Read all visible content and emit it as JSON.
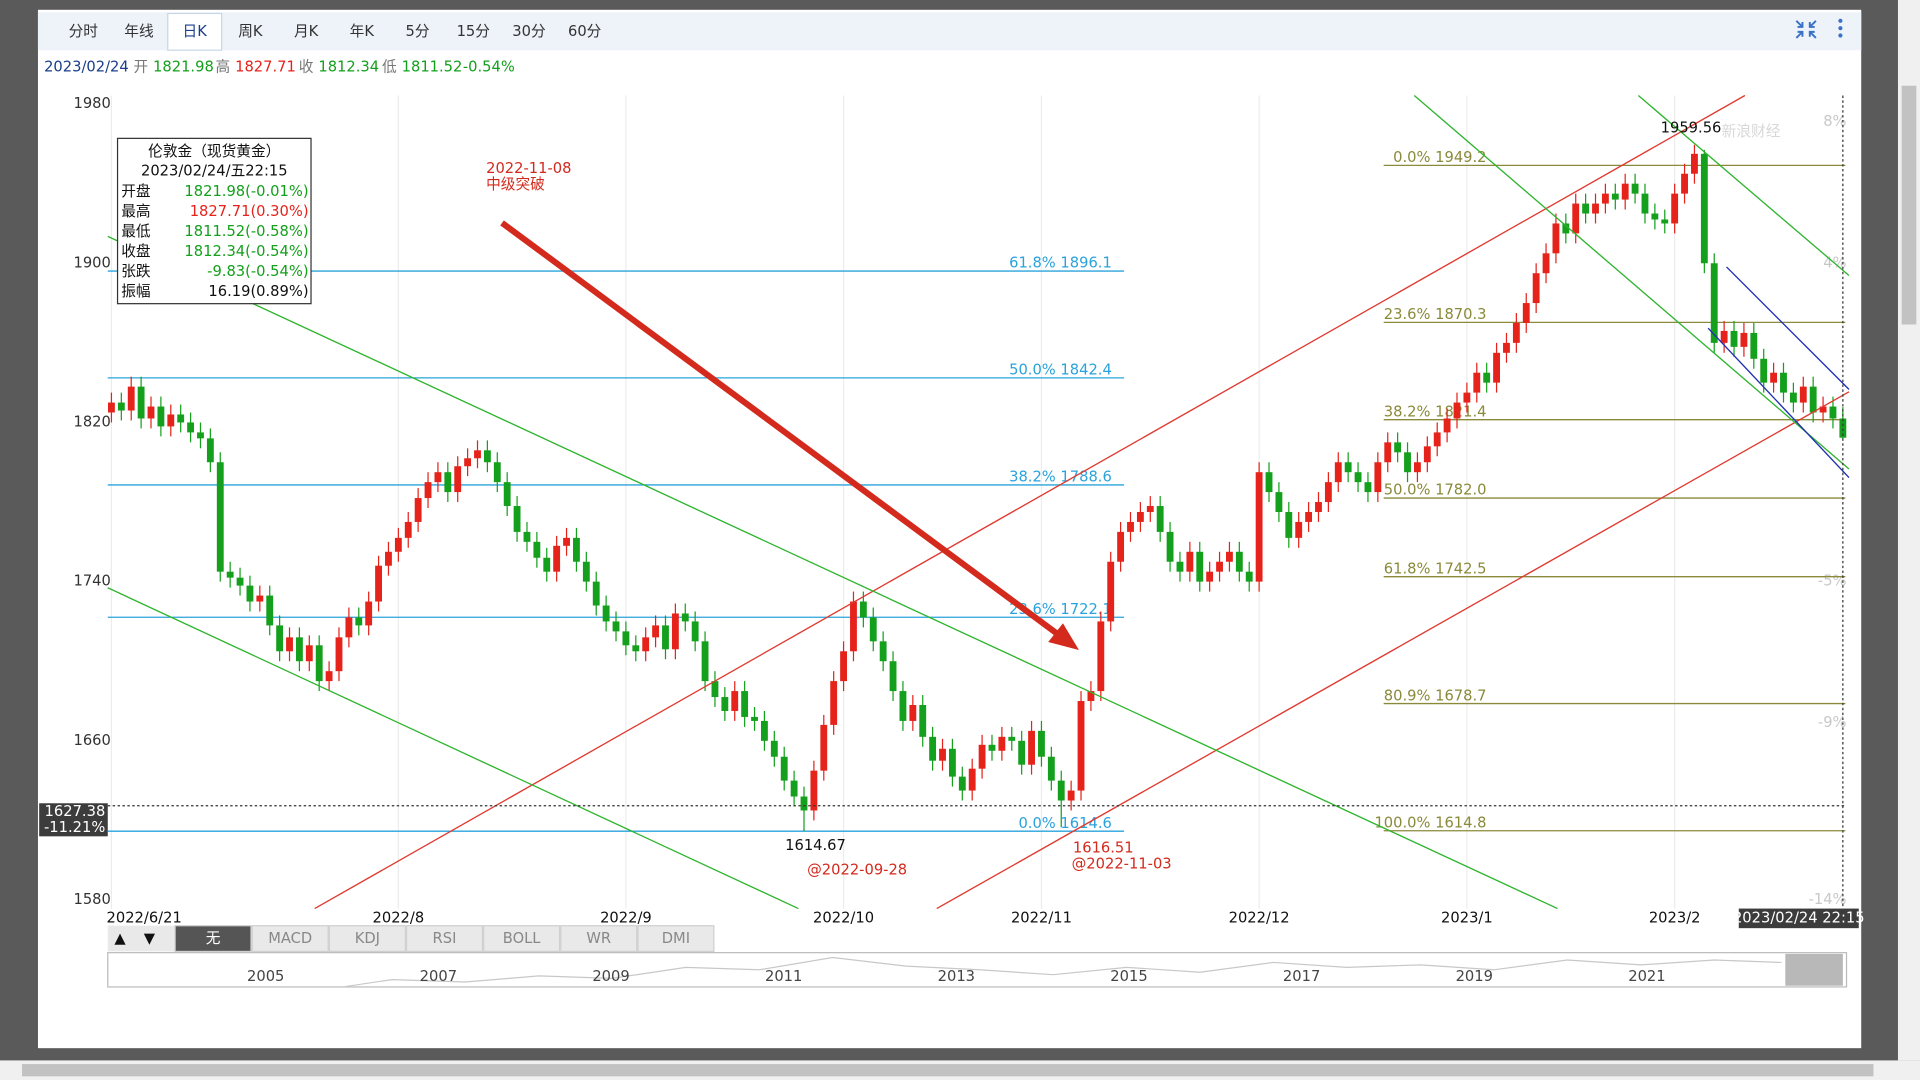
{
  "toolbar": {
    "period_tabs": [
      "分时",
      "年线",
      "日K",
      "周K",
      "月K",
      "年K",
      "5分",
      "15分",
      "30分",
      "60分"
    ],
    "active_period": "日K"
  },
  "quote_line": {
    "date": "2023/02/24",
    "open_label": "开",
    "open": "1821.98",
    "high_label": "高",
    "high": "1827.71",
    "close_label": "收",
    "close": "1812.34",
    "low_label": "低",
    "low": "1811.52",
    "change": "-0.54%"
  },
  "info_box": {
    "title": "伦敦金（现货黄金）",
    "datetime": "2023/02/24/五22:15",
    "rows": [
      [
        "开盘",
        "1821.98(-0.01%)"
      ],
      [
        "最高",
        "1827.71(0.30%)"
      ],
      [
        "最低",
        "1811.52(-0.58%)"
      ],
      [
        "收盘",
        "1812.34(-0.54%)"
      ],
      [
        "张跌",
        "-9.83(-0.54%)"
      ],
      [
        "振幅",
        "16.19(0.89%)"
      ]
    ]
  },
  "chart_data": {
    "type": "candlestick",
    "categories": [
      "2022/6/21",
      null,
      null,
      null,
      null,
      null,
      null,
      null,
      null,
      null,
      null,
      null,
      null,
      null,
      null,
      null,
      null,
      null,
      null,
      null,
      null,
      null,
      null,
      null,
      null,
      null,
      null,
      null,
      null,
      "2022/8",
      null,
      null,
      null,
      null,
      null,
      null,
      null,
      null,
      null,
      null,
      null,
      null,
      null,
      null,
      null,
      null,
      null,
      null,
      null,
      null,
      null,
      null,
      "2022/9",
      null,
      null,
      null,
      null,
      null,
      null,
      null,
      null,
      null,
      null,
      null,
      null,
      null,
      null,
      null,
      null,
      null,
      null,
      null,
      null,
      null,
      "2022/10",
      null,
      null,
      null,
      null,
      null,
      null,
      null,
      null,
      null,
      null,
      null,
      null,
      null,
      null,
      null,
      null,
      null,
      null,
      null,
      "2022/11",
      null,
      null,
      null,
      null,
      null,
      null,
      null,
      null,
      null,
      null,
      null,
      null,
      null,
      null,
      null,
      null,
      null,
      null,
      null,
      null,
      null,
      "2022/12",
      null,
      null,
      null,
      null,
      null,
      null,
      null,
      null,
      null,
      null,
      null,
      null,
      null,
      null,
      null,
      null,
      null,
      null,
      null,
      null,
      "2023/1",
      null,
      null,
      null,
      null,
      null,
      null,
      null,
      null,
      null,
      null,
      null,
      null,
      null,
      null,
      null,
      null,
      null,
      null,
      null,
      null,
      "2023/2",
      null,
      null,
      null,
      null,
      null,
      null,
      null,
      null,
      null,
      null,
      null,
      null,
      null,
      null,
      null,
      null,
      null
    ],
    "open": [
      1825,
      1830,
      1826,
      1838,
      1822,
      1828,
      1818,
      1824,
      1820,
      1815,
      1812,
      1800,
      1745,
      1742,
      1738,
      1730,
      1733,
      1718,
      1705,
      1712,
      1700,
      1708,
      1690,
      1695,
      1712,
      1722,
      1718,
      1730,
      1748,
      1755,
      1762,
      1770,
      1782,
      1790,
      1795,
      1785,
      1798,
      1802,
      1806,
      1800,
      1790,
      1778,
      1765,
      1760,
      1752,
      1745,
      1758,
      1762,
      1750,
      1740,
      1728,
      1720,
      1715,
      1708,
      1705,
      1712,
      1718,
      1706,
      1724,
      1720,
      1710,
      1690,
      1682,
      1675,
      1685,
      1672,
      1670,
      1660,
      1652,
      1640,
      1632,
      1625,
      1645,
      1668,
      1690,
      1705,
      1730,
      1722,
      1710,
      1700,
      1685,
      1670,
      1678,
      1662,
      1650,
      1656,
      1642,
      1635,
      1646,
      1658,
      1655,
      1662,
      1660,
      1648,
      1665,
      1652,
      1640,
      1630,
      1635,
      1680,
      1685,
      1720,
      1750,
      1765,
      1770,
      1775,
      1778,
      1765,
      1750,
      1745,
      1755,
      1740,
      1745,
      1750,
      1755,
      1745,
      1740,
      1795,
      1785,
      1775,
      1762,
      1770,
      1775,
      1780,
      1790,
      1800,
      1795,
      1790,
      1785,
      1800,
      1810,
      1805,
      1795,
      1800,
      1808,
      1815,
      1822,
      1830,
      1835,
      1845,
      1840,
      1855,
      1860,
      1870,
      1880,
      1895,
      1905,
      1920,
      1915,
      1930,
      1925,
      1930,
      1935,
      1932,
      1940,
      1935,
      1925,
      1922,
      1920,
      1935,
      1945,
      1955,
      1900,
      1860,
      1866,
      1858,
      1865,
      1852,
      1840,
      1845,
      1835,
      1830,
      1838,
      1825,
      1828,
      1821.98
    ],
    "high": [
      1835,
      1835,
      1843,
      1843,
      1833,
      1833,
      1829,
      1829,
      1825,
      1820,
      1817,
      1805,
      1750,
      1747,
      1743,
      1738,
      1738,
      1723,
      1717,
      1717,
      1713,
      1713,
      1700,
      1717,
      1727,
      1727,
      1735,
      1753,
      1760,
      1767,
      1775,
      1787,
      1795,
      1800,
      1800,
      1803,
      1807,
      1811,
      1811,
      1805,
      1795,
      1783,
      1770,
      1765,
      1757,
      1763,
      1767,
      1767,
      1755,
      1745,
      1733,
      1725,
      1720,
      1713,
      1717,
      1723,
      1723,
      1729,
      1729,
      1725,
      1715,
      1695,
      1687,
      1690,
      1690,
      1677,
      1675,
      1665,
      1657,
      1645,
      1637,
      1650,
      1673,
      1695,
      1710,
      1735,
      1735,
      1727,
      1715,
      1705,
      1690,
      1683,
      1683,
      1667,
      1661,
      1661,
      1647,
      1651,
      1663,
      1663,
      1667,
      1667,
      1665,
      1670,
      1670,
      1657,
      1645,
      1640,
      1685,
      1690,
      1725,
      1755,
      1770,
      1775,
      1780,
      1783,
      1783,
      1770,
      1755,
      1760,
      1760,
      1750,
      1755,
      1760,
      1760,
      1750,
      1800,
      1800,
      1790,
      1780,
      1775,
      1780,
      1785,
      1795,
      1805,
      1805,
      1800,
      1795,
      1805,
      1815,
      1815,
      1810,
      1805,
      1813,
      1820,
      1827,
      1835,
      1840,
      1850,
      1850,
      1860,
      1865,
      1875,
      1885,
      1900,
      1910,
      1925,
      1925,
      1935,
      1935,
      1935,
      1940,
      1940,
      1945,
      1945,
      1940,
      1930,
      1927,
      1940,
      1950,
      1959.56,
      1957,
      1905,
      1871,
      1871,
      1870,
      1870,
      1857,
      1850,
      1850,
      1840,
      1843,
      1843,
      1833,
      1833,
      1827.71
    ],
    "low": [
      1820,
      1821,
      1821,
      1817,
      1817,
      1813,
      1813,
      1815,
      1810,
      1807,
      1795,
      1740,
      1737,
      1733,
      1725,
      1725,
      1713,
      1700,
      1700,
      1695,
      1695,
      1685,
      1685,
      1690,
      1707,
      1713,
      1713,
      1725,
      1743,
      1750,
      1757,
      1765,
      1777,
      1785,
      1780,
      1780,
      1793,
      1797,
      1795,
      1785,
      1773,
      1760,
      1755,
      1747,
      1740,
      1740,
      1753,
      1745,
      1735,
      1723,
      1715,
      1710,
      1703,
      1700,
      1700,
      1707,
      1701,
      1701,
      1715,
      1705,
      1685,
      1677,
      1670,
      1670,
      1667,
      1665,
      1655,
      1647,
      1635,
      1627,
      1614.67,
      1620,
      1640,
      1663,
      1685,
      1700,
      1717,
      1705,
      1695,
      1680,
      1665,
      1665,
      1657,
      1645,
      1645,
      1637,
      1630,
      1630,
      1641,
      1650,
      1650,
      1655,
      1643,
      1643,
      1647,
      1635,
      1616.51,
      1625,
      1630,
      1675,
      1680,
      1715,
      1745,
      1760,
      1765,
      1770,
      1760,
      1745,
      1740,
      1740,
      1735,
      1735,
      1740,
      1745,
      1740,
      1735,
      1735,
      1780,
      1770,
      1757,
      1757,
      1765,
      1770,
      1775,
      1785,
      1790,
      1785,
      1780,
      1780,
      1795,
      1800,
      1790,
      1790,
      1795,
      1803,
      1810,
      1817,
      1825,
      1830,
      1835,
      1835,
      1850,
      1855,
      1865,
      1875,
      1890,
      1900,
      1910,
      1910,
      1920,
      1920,
      1925,
      1927,
      1927,
      1930,
      1920,
      1917,
      1915,
      1915,
      1930,
      1940,
      1895,
      1855,
      1855,
      1853,
      1853,
      1847,
      1835,
      1835,
      1830,
      1825,
      1825,
      1820,
      1820,
      1817,
      1811.52
    ],
    "close": [
      1830,
      1826,
      1838,
      1822,
      1828,
      1818,
      1824,
      1820,
      1815,
      1812,
      1800,
      1745,
      1742,
      1738,
      1730,
      1733,
      1718,
      1705,
      1712,
      1700,
      1708,
      1690,
      1695,
      1712,
      1722,
      1718,
      1730,
      1748,
      1755,
      1762,
      1770,
      1782,
      1790,
      1795,
      1785,
      1798,
      1802,
      1806,
      1800,
      1790,
      1778,
      1765,
      1760,
      1752,
      1745,
      1758,
      1762,
      1750,
      1740,
      1728,
      1720,
      1715,
      1708,
      1705,
      1712,
      1718,
      1706,
      1724,
      1720,
      1710,
      1690,
      1682,
      1675,
      1685,
      1672,
      1670,
      1660,
      1652,
      1640,
      1632,
      1625,
      1645,
      1668,
      1690,
      1705,
      1730,
      1722,
      1710,
      1700,
      1685,
      1670,
      1678,
      1662,
      1650,
      1656,
      1642,
      1635,
      1646,
      1658,
      1655,
      1662,
      1660,
      1648,
      1665,
      1652,
      1640,
      1630,
      1635,
      1680,
      1685,
      1720,
      1750,
      1765,
      1770,
      1775,
      1778,
      1765,
      1750,
      1745,
      1755,
      1740,
      1745,
      1750,
      1755,
      1745,
      1740,
      1795,
      1785,
      1775,
      1762,
      1770,
      1775,
      1780,
      1790,
      1800,
      1795,
      1790,
      1785,
      1800,
      1810,
      1805,
      1795,
      1800,
      1808,
      1815,
      1822,
      1830,
      1835,
      1845,
      1840,
      1855,
      1860,
      1870,
      1880,
      1895,
      1905,
      1920,
      1915,
      1930,
      1925,
      1930,
      1935,
      1932,
      1940,
      1935,
      1925,
      1922,
      1920,
      1935,
      1945,
      1955,
      1900,
      1860,
      1866,
      1858,
      1865,
      1852,
      1840,
      1845,
      1835,
      1830,
      1838,
      1825,
      1828,
      1822,
      1812.34
    ],
    "up_color": "#e5231b",
    "down_color": "#14a01c",
    "ylim": [
      1580,
      1980
    ],
    "yticks": [
      1580,
      1660,
      1740,
      1820,
      1900,
      1980
    ],
    "y2lim": [
      -14,
      8.5
    ],
    "y2ticks": [
      {
        "value": 8,
        "label": "8%"
      },
      {
        "value": 4,
        "label": "4%"
      },
      {
        "value": -5,
        "label": "-5%"
      },
      {
        "value": -9,
        "label": "-9%"
      },
      {
        "value": -14,
        "label": "-14%"
      }
    ],
    "grid": "x",
    "fib_left": [
      {
        "value": 1896.1,
        "label": "61.8% 1896.1"
      },
      {
        "value": 1842.4,
        "label": "50.0% 1842.4"
      },
      {
        "value": 1788.6,
        "label": "38.2% 1788.6"
      },
      {
        "value": 1722.1,
        "label": "23.6% 1722.1"
      },
      {
        "value": 1614.6,
        "label": "0.0% 1614.6"
      }
    ],
    "fib_right": [
      {
        "value": 1949.2,
        "label": "0.0% 1949.2"
      },
      {
        "value": 1870.3,
        "label": "23.6% 1870.3"
      },
      {
        "value": 1821.4,
        "label": "38.2% 1821.4"
      },
      {
        "value": 1782.0,
        "label": "50.0% 1782.0"
      },
      {
        "value": 1742.5,
        "label": "61.8% 1742.5"
      },
      {
        "value": 1678.7,
        "label": "80.9% 1678.7"
      },
      {
        "value": 1614.8,
        "label": "100.0% 1614.8"
      }
    ],
    "fib_left_color": "#2aa3dc",
    "fib_right_color": "#8a8a3a",
    "annotations": [
      "1614.67",
      "@2022-09-28",
      "1616.51",
      "@2022-11-03",
      "1959.56",
      "2022-11-08",
      "中级突破"
    ],
    "crosshair": {
      "value": 1627.38,
      "pct": "-11.21%",
      "date": "2023/02/24 22:15"
    },
    "watermark": "新浪财经"
  },
  "indicator_tabs": [
    "无",
    "MACD",
    "KDJ",
    "RSI",
    "BOLL",
    "WR",
    "DMI"
  ],
  "active_indicator": "无",
  "zoom_buttons": [
    "▲",
    "▼"
  ],
  "navigator_years": [
    "2005",
    "2007",
    "2009",
    "2011",
    "2013",
    "2015",
    "2017",
    "2019",
    "2021"
  ]
}
